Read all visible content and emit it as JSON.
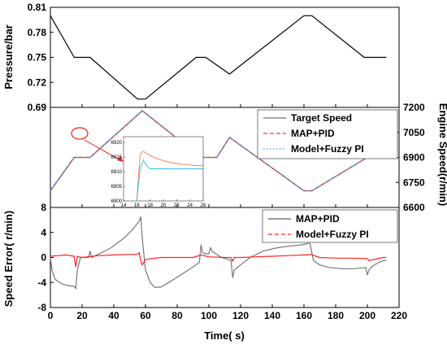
{
  "chart_data": [
    {
      "type": "line",
      "panel": "top",
      "ylabel": "Pressure/bar",
      "xlim": [
        0,
        220
      ],
      "ylim": [
        0.69,
        0.81
      ],
      "yticks": [
        "0.81",
        "0.78",
        "0.75",
        "0.72",
        "0.69"
      ],
      "series": [
        {
          "color": "#000000",
          "x": [
            0,
            15,
            25,
            55,
            60,
            92,
            98,
            113,
            160,
            165,
            198,
            212
          ],
          "y": [
            0.8,
            0.75,
            0.75,
            0.7,
            0.7,
            0.75,
            0.75,
            0.73,
            0.8,
            0.8,
            0.75,
            0.75
          ]
        }
      ]
    },
    {
      "type": "line",
      "panel": "middle",
      "ylabel": "Engine Speed(r/min)",
      "y_axis_side": "right",
      "xlim": [
        0,
        220
      ],
      "ylim": [
        6600,
        7200
      ],
      "yticks": [
        "7200",
        "7050",
        "6900",
        "6750",
        "6600"
      ],
      "legend": "top-right",
      "series": [
        {
          "name": "Target Speed",
          "color": "#888888",
          "style": "solid",
          "x": [
            0,
            15,
            25,
            58,
            95,
            105,
            113,
            160,
            165,
            200,
            212
          ],
          "y": [
            6700,
            6900,
            6900,
            7180,
            6900,
            6900,
            7020,
            6700,
            6700,
            6900,
            6900
          ]
        },
        {
          "name": "MAP+PID",
          "color": "#ff3333",
          "style": "dashed",
          "x": [
            0,
            15,
            25,
            58,
            95,
            105,
            113,
            160,
            165,
            200,
            212
          ],
          "y": [
            6700,
            6900,
            6900,
            7180,
            6900,
            6900,
            7020,
            6700,
            6700,
            6900,
            6900
          ]
        },
        {
          "name": "Model+Fuzzy PI",
          "color": "#3399ff",
          "style": "dotted",
          "x": [
            0,
            15,
            25,
            58,
            95,
            105,
            113,
            160,
            165,
            200,
            212
          ],
          "y": [
            6700,
            6900,
            6900,
            7180,
            6900,
            6900,
            7020,
            6700,
            6700,
            6900,
            6900
          ]
        }
      ],
      "inset": {
        "xticks": [
          "14",
          "16",
          "18",
          "20",
          "22",
          "24",
          "26"
        ],
        "yticks": [
          "6920",
          "6915",
          "6910",
          "6905",
          "6900"
        ],
        "xlim": [
          14,
          26
        ],
        "ylim": [
          6900,
          6922
        ],
        "series": [
          {
            "name": "MAP+PID",
            "color": "#ff7744",
            "x": [
              16,
              16.5,
              17,
              18,
              19,
              20,
              21,
              22,
              23,
              24,
              25,
              26
            ],
            "y": [
              6900,
              6916,
              6917,
              6915.5,
              6914.5,
              6913.8,
              6913.2,
              6912.8,
              6912.5,
              6912.3,
              6912.1,
              6912
            ]
          },
          {
            "name": "Model+Fuzzy PI",
            "color": "#33bbee",
            "x": [
              16,
              16.5,
              17,
              17.5,
              18,
              19,
              20,
              22,
              24,
              26
            ],
            "y": [
              6900,
              6911,
              6914,
              6912,
              6911,
              6911,
              6911,
              6911,
              6911,
              6911
            ]
          }
        ]
      }
    },
    {
      "type": "line",
      "panel": "bottom",
      "xlabel": "Time( s)",
      "ylabel": "Speed Error( r/min)",
      "xlim": [
        0,
        220
      ],
      "ylim": [
        -8,
        8
      ],
      "xticks": [
        "0",
        "20",
        "40",
        "60",
        "80",
        "100",
        "120",
        "140",
        "160",
        "180",
        "200",
        "220"
      ],
      "yticks": [
        "8",
        "4",
        "0",
        "-4",
        "-8"
      ],
      "legend": "top-right",
      "series": [
        {
          "name": "MAP+PID",
          "color": "#777777",
          "x": [
            0,
            1,
            3,
            7,
            11,
            15,
            16,
            17,
            18,
            19,
            20,
            24,
            25,
            26,
            30,
            38,
            46,
            52,
            56,
            57,
            58,
            60,
            63,
            66,
            70,
            76,
            84,
            90,
            94,
            95,
            96,
            98,
            100,
            101,
            102,
            105,
            108,
            112,
            114,
            115,
            116,
            120,
            126,
            134,
            142,
            150,
            158,
            162,
            163,
            164,
            166,
            170,
            176,
            184,
            192,
            199,
            200,
            201,
            203,
            208,
            212
          ],
          "y": [
            0,
            -2,
            -3.5,
            -4.2,
            -4.5,
            -4.6,
            -5,
            -2,
            -1,
            0,
            0,
            0,
            1,
            0,
            0.5,
            1.5,
            3,
            4.5,
            5.8,
            6.5,
            3,
            -2,
            -4,
            -4.8,
            -4.7,
            -3.8,
            -2.5,
            -1.5,
            -0.8,
            2,
            0.8,
            0.6,
            0.6,
            1.6,
            1,
            0.5,
            0,
            -0.3,
            -0.5,
            -3.2,
            -2,
            -1.2,
            0,
            1,
            1.5,
            1.8,
            2,
            2.2,
            2.5,
            2,
            -0.5,
            -1.2,
            -1.6,
            -1.8,
            -1.8,
            -1.6,
            -2.8,
            -2,
            -1.4,
            -0.7,
            -0.4
          ]
        },
        {
          "name": "Model+Fuzzy PI",
          "color": "#ff2222",
          "x": [
            0,
            5,
            10,
            15,
            16,
            17,
            18,
            20,
            30,
            40,
            50,
            55,
            56,
            57,
            58,
            60,
            70,
            80,
            90,
            95,
            100,
            110,
            114,
            115,
            116,
            120,
            130,
            140,
            150,
            160,
            162,
            164,
            170,
            180,
            190,
            200,
            201,
            210,
            212
          ],
          "y": [
            0.2,
            0.3,
            0.4,
            0.2,
            -1.5,
            0.2,
            0.1,
            0,
            0.3,
            0.4,
            0.5,
            0.5,
            0.8,
            -0.5,
            -1.2,
            -0.3,
            0,
            0,
            0,
            0.4,
            0.1,
            0,
            0,
            -0.6,
            0,
            0,
            0.1,
            0.2,
            0.3,
            0.4,
            0.4,
            0.5,
            0,
            -0.1,
            -0.1,
            -0.2,
            -0.5,
            0,
            0
          ]
        }
      ]
    }
  ]
}
